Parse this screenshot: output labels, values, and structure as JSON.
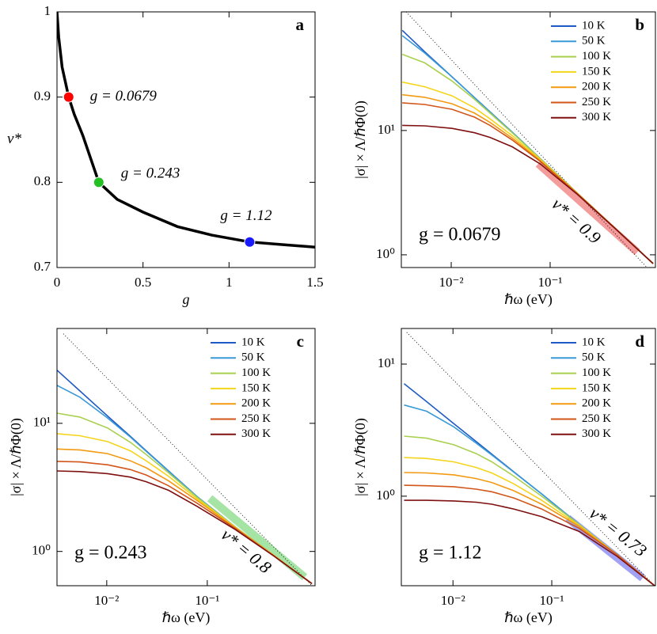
{
  "chart_data": [
    {
      "type": "line",
      "panel_label": "a",
      "xlabel": "g",
      "ylabel": "ν*",
      "xlim": [
        0,
        1.5
      ],
      "ylim": [
        0.7,
        1
      ],
      "xticks": [
        0,
        0.5,
        1,
        1.5
      ],
      "yticks": [
        0.7,
        0.8,
        0.9,
        1
      ],
      "x": [
        0,
        0.01,
        0.03,
        0.0679,
        0.1,
        0.15,
        0.243,
        0.35,
        0.5,
        0.7,
        0.9,
        1.12,
        1.3,
        1.5
      ],
      "series": [
        {
          "color": "#000000",
          "values": [
            1,
            0.97,
            0.935,
            0.9,
            0.88,
            0.855,
            0.8,
            0.78,
            0.765,
            0.748,
            0.738,
            0.73,
            0.727,
            0.724
          ]
        }
      ],
      "points": {
        "x": [
          0.0679,
          0.243,
          1.12
        ],
        "y": [
          0.9,
          0.8,
          0.73
        ],
        "colors": [
          "#ff0000",
          "#22c022",
          "#1a1aff"
        ],
        "labels": [
          "g = 0.0679",
          "g = 0.243",
          "g = 1.12"
        ]
      }
    },
    {
      "type": "line",
      "panel_label": "b",
      "xscale": "log",
      "yscale": "log",
      "xlabel": "ℏω (eV)",
      "ylabel": "|σ| × Λ/ℏΦ(0)",
      "xlim": [
        0.00313,
        1.16
      ],
      "ylim": [
        0.79,
        90
      ],
      "xticks": [
        {
          "value": 0.01,
          "label": "10⁻²"
        },
        {
          "value": 0.1,
          "label": "10⁻¹"
        }
      ],
      "yticks": [
        {
          "value": 1,
          "label": "10⁰"
        },
        {
          "value": 10,
          "label": "10¹"
        }
      ],
      "legend": "upper right",
      "x": [
        0.0032,
        0.0054,
        0.0102,
        0.0172,
        0.0247,
        0.0413,
        0.079,
        0.19,
        0.46,
        1.1
      ],
      "series": [
        {
          "name": "10 K",
          "color": "#1f5bc4",
          "values": [
            64,
            43,
            27,
            18.4,
            14.1,
            9.7,
            5.97,
            3.12,
            1.62,
            0.85
          ]
        },
        {
          "name": "50 K",
          "color": "#3a9ad8",
          "values": [
            58,
            42,
            27,
            18.4,
            14.1,
            9.7,
            5.97,
            3.12,
            1.62,
            0.85
          ]
        },
        {
          "name": "100 K",
          "color": "#a9d04e",
          "values": [
            41,
            35,
            25,
            17.8,
            13.8,
            9.6,
            5.95,
            3.12,
            1.62,
            0.85
          ]
        },
        {
          "name": "150 K",
          "color": "#f5d41c",
          "values": [
            24.5,
            22.5,
            19,
            15.2,
            12.4,
            9.1,
            5.85,
            3.11,
            1.62,
            0.85
          ]
        },
        {
          "name": "200 K",
          "color": "#f39a12",
          "values": [
            19.4,
            18.5,
            16.4,
            13.8,
            11.6,
            8.7,
            5.75,
            3.1,
            1.62,
            0.85
          ]
        },
        {
          "name": "250 K",
          "color": "#d2561a",
          "values": [
            16.7,
            16.2,
            14.8,
            12.8,
            11,
            8.4,
            5.65,
            3.08,
            1.62,
            0.85
          ]
        },
        {
          "name": "300 K",
          "color": "#7e1010",
          "values": [
            11,
            10.9,
            10.4,
            9.6,
            8.8,
            7.4,
            5.4,
            3.05,
            1.61,
            0.85
          ]
        }
      ],
      "reference": {
        "x": [
          0.0035,
          1.1
        ],
        "values": [
          90,
          0.7
        ]
      },
      "fit": {
        "label": "ν* = 0.9",
        "color": "#f07070",
        "x": [
          0.076,
          0.76
        ],
        "values": [
          5.4,
          1.05
        ]
      },
      "annotation": {
        "text": "g = 0.0679",
        "color": "#ee1111"
      }
    },
    {
      "type": "line",
      "panel_label": "c",
      "xscale": "log",
      "yscale": "log",
      "xlabel": "ℏω (eV)",
      "ylabel": "|σ| × Λ/ℏΦ(0)",
      "xlim": [
        0.0032,
        1.18
      ],
      "ylim": [
        0.54,
        55
      ],
      "xticks": [
        {
          "value": 0.01,
          "label": "10⁻²"
        },
        {
          "value": 0.1,
          "label": "10⁻¹"
        }
      ],
      "yticks": [
        {
          "value": 1,
          "label": "10⁰"
        },
        {
          "value": 10,
          "label": "10¹"
        }
      ],
      "legend": "upper right",
      "x": [
        0.0032,
        0.0054,
        0.0102,
        0.0172,
        0.0247,
        0.0413,
        0.079,
        0.19,
        0.46,
        1.1
      ],
      "series": [
        {
          "name": "10 K",
          "color": "#1f5bc4",
          "values": [
            26,
            17.9,
            11.4,
            7.9,
            6.1,
            4.24,
            2.68,
            1.55,
            0.93,
            0.56
          ]
        },
        {
          "name": "50 K",
          "color": "#3a9ad8",
          "values": [
            19.8,
            16,
            11,
            7.8,
            6.05,
            4.22,
            2.68,
            1.55,
            0.93,
            0.56
          ]
        },
        {
          "name": "100 K",
          "color": "#a9d04e",
          "values": [
            12,
            11.2,
            9.2,
            7.1,
            5.7,
            4.1,
            2.65,
            1.55,
            0.93,
            0.56
          ]
        },
        {
          "name": "150 K",
          "color": "#f5d41c",
          "values": [
            8.3,
            8,
            7.2,
            6.1,
            5.1,
            3.85,
            2.58,
            1.54,
            0.93,
            0.56
          ]
        },
        {
          "name": "200 K",
          "color": "#f39a12",
          "values": [
            6.3,
            6.2,
            5.8,
            5.1,
            4.5,
            3.55,
            2.5,
            1.53,
            0.93,
            0.56
          ]
        },
        {
          "name": "250 K",
          "color": "#d2561a",
          "values": [
            5.05,
            5,
            4.75,
            4.35,
            3.95,
            3.25,
            2.38,
            1.51,
            0.92,
            0.56
          ]
        },
        {
          "name": "300 K",
          "color": "#7e1010",
          "values": [
            4.25,
            4.2,
            4.05,
            3.8,
            3.5,
            3,
            2.25,
            1.48,
            0.92,
            0.56
          ]
        }
      ],
      "reference": {
        "x": [
          0.0037,
          1.1
        ],
        "values": [
          50,
          0.54
        ]
      },
      "fit": {
        "label": "ν* = 0.8",
        "color": "#80d880",
        "x": [
          0.106,
          0.93
        ],
        "values": [
          2.6,
          0.63
        ]
      },
      "annotation": {
        "text": "g = 0.243",
        "color": "#22c022"
      }
    },
    {
      "type": "line",
      "panel_label": "d",
      "xscale": "log",
      "yscale": "log",
      "xlabel": "ℏω (eV)",
      "ylabel": "|σ| × Λ/ℏΦ(0)",
      "xlim": [
        0.003,
        1.12
      ],
      "ylim": [
        0.21,
        18.6
      ],
      "xticks": [
        {
          "value": 0.01,
          "label": "10⁻²"
        },
        {
          "value": 0.1,
          "label": "10⁻¹"
        }
      ],
      "yticks": [
        {
          "value": 1,
          "label": "10⁰"
        },
        {
          "value": 10,
          "label": "10¹"
        }
      ],
      "legend": "upper right",
      "x": [
        0.0032,
        0.0054,
        0.0102,
        0.0172,
        0.0247,
        0.0413,
        0.079,
        0.19,
        0.46,
        1.1
      ],
      "series": [
        {
          "name": "10 K",
          "color": "#1f5bc4",
          "values": [
            7.1,
            5.2,
            3.54,
            2.59,
            2.08,
            1.53,
            1.04,
            0.61,
            0.36,
            0.21
          ]
        },
        {
          "name": "50 K",
          "color": "#3a9ad8",
          "values": [
            4.9,
            4.4,
            3.35,
            2.52,
            2.05,
            1.52,
            1.04,
            0.61,
            0.36,
            0.21
          ]
        },
        {
          "name": "100 K",
          "color": "#a9d04e",
          "values": [
            2.85,
            2.75,
            2.45,
            2.1,
            1.82,
            1.42,
            1,
            0.61,
            0.36,
            0.21
          ]
        },
        {
          "name": "150 K",
          "color": "#f5d41c",
          "values": [
            1.96,
            1.93,
            1.82,
            1.65,
            1.5,
            1.24,
            0.93,
            0.6,
            0.36,
            0.21
          ]
        },
        {
          "name": "200 K",
          "color": "#f39a12",
          "values": [
            1.51,
            1.5,
            1.45,
            1.36,
            1.27,
            1.1,
            0.87,
            0.59,
            0.36,
            0.21
          ]
        },
        {
          "name": "250 K",
          "color": "#d2561a",
          "values": [
            1.21,
            1.2,
            1.18,
            1.13,
            1.08,
            0.97,
            0.8,
            0.57,
            0.36,
            0.21
          ]
        },
        {
          "name": "300 K",
          "color": "#7e1010",
          "values": [
            0.93,
            0.93,
            0.92,
            0.9,
            0.87,
            0.8,
            0.7,
            0.54,
            0.35,
            0.21
          ]
        }
      ],
      "reference": {
        "x": [
          0.0034,
          1.1
        ],
        "values": [
          17.4,
          0.21
        ]
      },
      "fit": {
        "label": "ν* = 0.73",
        "color": "#7a7af0",
        "x": [
          0.145,
          0.83
        ],
        "values": [
          0.68,
          0.24
        ]
      },
      "annotation": {
        "text": "g = 1.12",
        "color": "#1a1aff"
      }
    }
  ]
}
